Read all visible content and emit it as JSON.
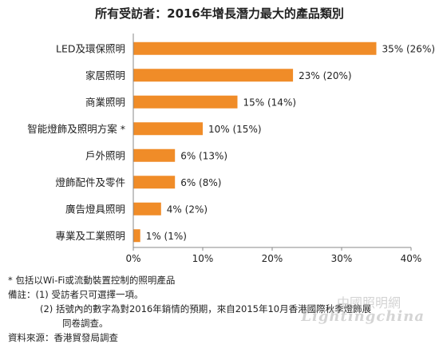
{
  "chart_data": {
    "type": "bar",
    "orientation": "horizontal",
    "title": "所有受訪者：2016年增長潛力最大的產品類別",
    "categories": [
      "LED及環保照明",
      "家居照明",
      "商業照明",
      "智能燈飾及照明方案 *",
      "戶外照明",
      "燈飾配件及零件",
      "廣告燈具照明",
      "專業及工業照明"
    ],
    "values": [
      35,
      23,
      15,
      10,
      6,
      6,
      4,
      1
    ],
    "value_labels": [
      "35% (26%)",
      "23% (20%)",
      "15% (14%)",
      "10% (15%)",
      "6% (13%)",
      "6% (8%)",
      "4% (2%)",
      "1% (1%)"
    ],
    "xlim": [
      0,
      40
    ],
    "x_ticks": [
      "0%",
      "10%",
      "20%",
      "30%",
      "40%"
    ],
    "grid": false,
    "bar_color": "#f08c28"
  },
  "notes": {
    "line1": "* 包括以Wi-Fi或流動裝置控制的照明產品",
    "line2": "備註：(1) 受訪者只可選擇一項。",
    "line3": "(2) 括號內的數字為對2016年銷情的預期，來自2015年10月香港國際秋季燈飾展",
    "line4": "同卷調查。",
    "line5": "資料來源：香港貿發局調查"
  },
  "watermark": {
    "cn": "中國照明網",
    "en": "Lightingchina"
  }
}
